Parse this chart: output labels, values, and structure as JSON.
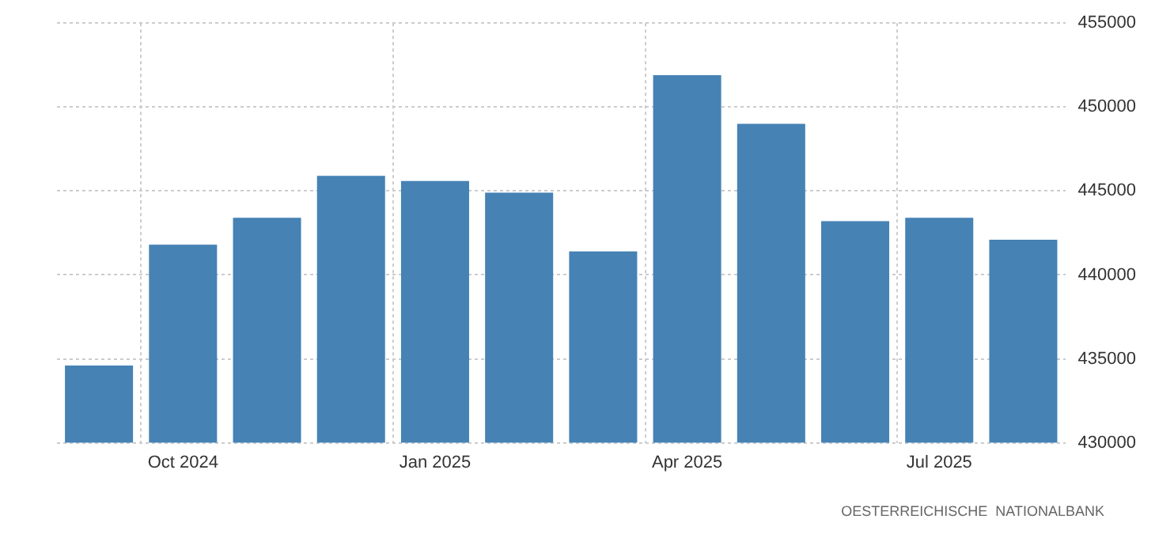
{
  "chart_data": {
    "type": "bar",
    "categories": [
      null,
      "Oct 2024",
      null,
      null,
      "Jan 2025",
      null,
      null,
      "Apr 2025",
      null,
      null,
      "Jul 2025",
      null
    ],
    "values": [
      434600,
      441800,
      443400,
      445900,
      445600,
      444900,
      441400,
      451900,
      449000,
      443200,
      443400,
      442100
    ],
    "color": "#4682b4",
    "ylim": [
      430000,
      455000
    ],
    "yticks": [
      430000,
      435000,
      440000,
      445000,
      450000,
      455000
    ],
    "grid": true,
    "annotations": [
      "OESTERREICHISCHE  NATIONALBANK"
    ]
  }
}
